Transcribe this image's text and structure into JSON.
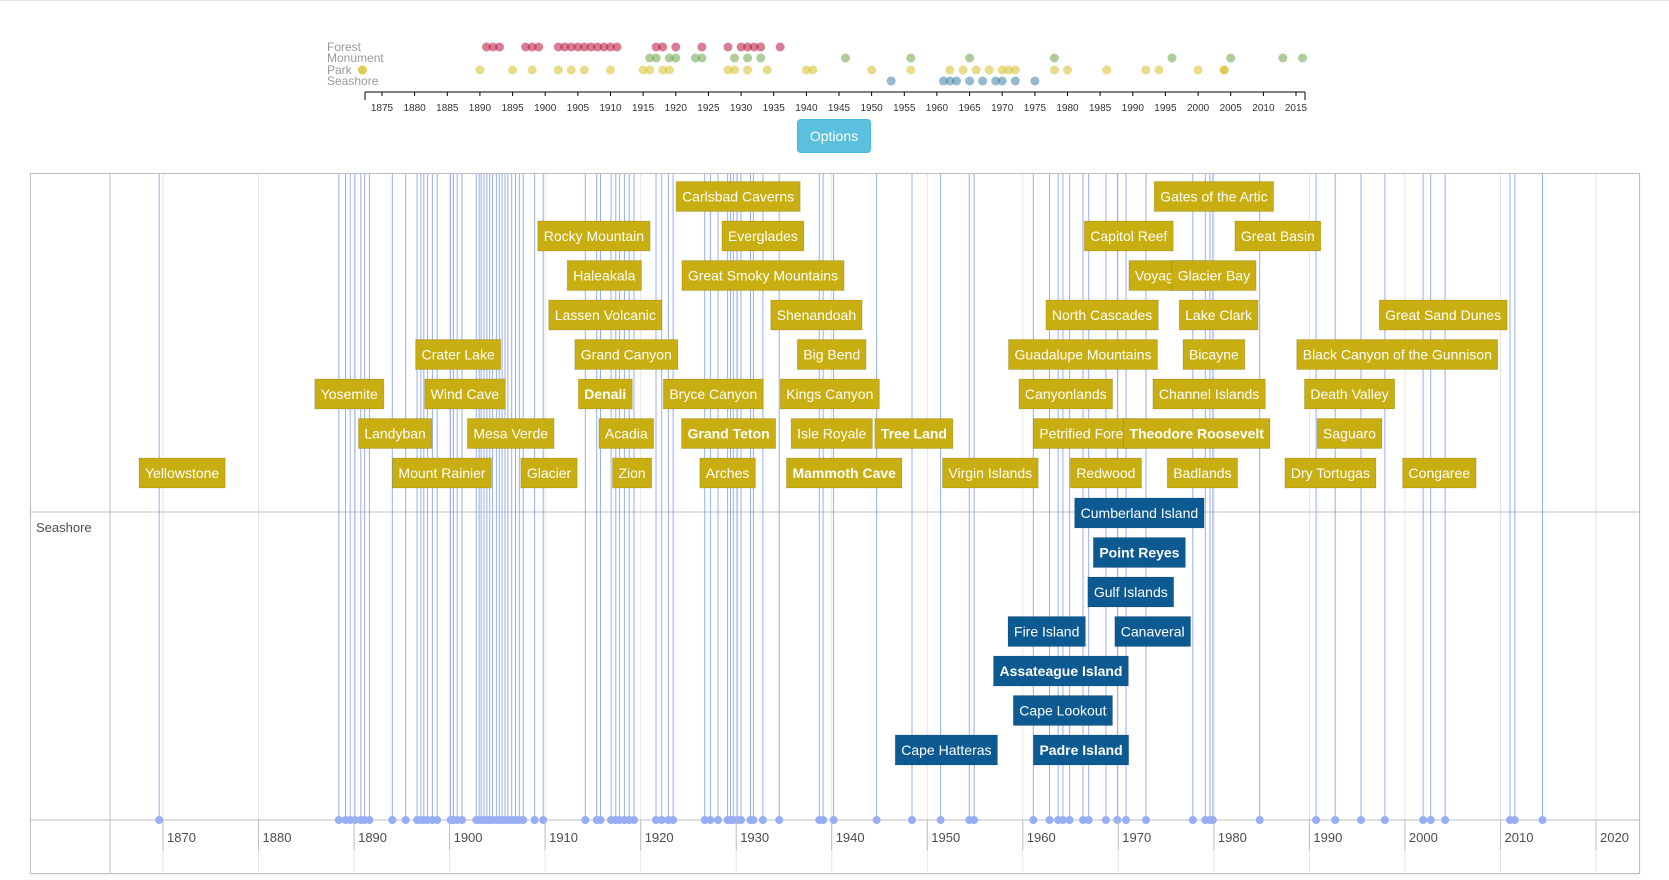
{
  "options_button": {
    "label": "Options"
  },
  "colors": {
    "park_box": "#c8ae10",
    "seashore_box": "#0d5a93",
    "line": "#97aef5",
    "forest_dot": "#b8133a",
    "monument_dot": "#6da44a",
    "park_dot": "#d6bf2c",
    "seashore_dot": "#3e7fa8"
  },
  "overview": {
    "categories": [
      "Forest",
      "Monument",
      "Park",
      "Seashore"
    ],
    "x_ticks": [
      1875,
      1880,
      1885,
      1890,
      1895,
      1900,
      1905,
      1910,
      1915,
      1920,
      1925,
      1930,
      1935,
      1940,
      1945,
      1950,
      1955,
      1960,
      1965,
      1970,
      1975,
      1980,
      1985,
      1990,
      1995,
      2000,
      2005,
      2010,
      2015
    ],
    "x_range": [
      1872,
      2016
    ],
    "points": {
      "Forest": [
        1891,
        1892,
        1893,
        1897,
        1898,
        1899,
        1902,
        1903,
        1904,
        1905,
        1906,
        1907,
        1908,
        1909,
        1910,
        1911,
        1917,
        1918,
        1920,
        1924,
        1928,
        1930,
        1931,
        1932,
        1933,
        1936
      ],
      "Monument": [
        1916,
        1917,
        1919,
        1920,
        1923,
        1924,
        1929,
        1931,
        1933,
        1946,
        1956,
        1965,
        1978,
        1996,
        2005,
        2013,
        2016
      ],
      "Park": [
        1872,
        1872,
        1890,
        1895,
        1898,
        1902,
        1904,
        1906,
        1910,
        1915,
        1916,
        1918,
        1919,
        1928,
        1929,
        1931,
        1934,
        1940,
        1941,
        1950,
        1956,
        1962,
        1964,
        1966,
        1968,
        1970,
        1971,
        1972,
        1978,
        1980,
        1986,
        1992,
        1994,
        2000,
        2004,
        2004
      ],
      "Seashore": [
        1953,
        1961,
        1962,
        1963,
        1965,
        1967,
        1969,
        1970,
        1972,
        1975
      ]
    }
  },
  "timeline": {
    "x_ticks": [
      1870,
      1880,
      1890,
      1900,
      1910,
      1920,
      1930,
      1940,
      1950,
      1960,
      1970,
      1980,
      1990,
      2000,
      2010,
      2020
    ],
    "x_range": [
      1866.55,
      2023.05
    ],
    "group_label": "Seashore",
    "park_items": [
      {
        "label": "Yellowstone",
        "year": 1872.0,
        "row": 0,
        "bold": false
      },
      {
        "label": "Mount Rainier",
        "year": 1899.2,
        "row": 0,
        "bold": false
      },
      {
        "label": "Glacier",
        "year": 1910.4,
        "row": 0,
        "bold": false
      },
      {
        "label": "Zion",
        "year": 1919.1,
        "row": 0,
        "bold": false
      },
      {
        "label": "Arches",
        "year": 1929.1,
        "row": 0,
        "bold": false
      },
      {
        "label": "Mammoth Cave",
        "year": 1941.3,
        "row": 0,
        "bold": true
      },
      {
        "label": "Virgin Islands",
        "year": 1956.6,
        "row": 0,
        "bold": false
      },
      {
        "label": "Redwood",
        "year": 1968.7,
        "row": 0,
        "bold": false
      },
      {
        "label": "Badlands",
        "year": 1978.8,
        "row": 0,
        "bold": false
      },
      {
        "label": "Dry Tortugas",
        "year": 1992.2,
        "row": 0,
        "bold": false
      },
      {
        "label": "Congaree",
        "year": 2003.6,
        "row": 0,
        "bold": false
      },
      {
        "label": "Landyban",
        "year": 1894.3,
        "row": 1,
        "bold": false
      },
      {
        "label": "Mesa Verde",
        "year": 1906.4,
        "row": 1,
        "bold": false
      },
      {
        "label": "Acadia",
        "year": 1918.5,
        "row": 1,
        "bold": false
      },
      {
        "label": "Grand Teton",
        "year": 1929.2,
        "row": 1,
        "bold": true
      },
      {
        "label": "Isle Royale",
        "year": 1940.0,
        "row": 1,
        "bold": false
      },
      {
        "label": "Tree Land",
        "year": 1948.6,
        "row": 1,
        "bold": true
      },
      {
        "label": "Petrified Forest",
        "year": 1966.7,
        "row": 1,
        "bold": false
      },
      {
        "label": "Theodore Roosevelt",
        "year": 1978.2,
        "row": 1,
        "bold": true
      },
      {
        "label": "Saguaro",
        "year": 1994.2,
        "row": 1,
        "bold": false
      },
      {
        "label": "Yosemite",
        "year": 1889.5,
        "row": 2,
        "bold": false
      },
      {
        "label": "Wind Cave",
        "year": 1901.6,
        "row": 2,
        "bold": false
      },
      {
        "label": "Denali",
        "year": 1916.3,
        "row": 2,
        "bold": true
      },
      {
        "label": "Bryce Canyon",
        "year": 1927.6,
        "row": 2,
        "bold": false
      },
      {
        "label": "Kings Canyon",
        "year": 1939.8,
        "row": 2,
        "bold": false
      },
      {
        "label": "Canyonlands",
        "year": 1964.5,
        "row": 2,
        "bold": false
      },
      {
        "label": "Channel Islands",
        "year": 1979.5,
        "row": 2,
        "bold": false
      },
      {
        "label": "Death Valley",
        "year": 1994.2,
        "row": 2,
        "bold": false
      },
      {
        "label": "Crater Lake",
        "year": 1900.9,
        "row": 3,
        "bold": false
      },
      {
        "label": "Grand Canyon",
        "year": 1918.5,
        "row": 3,
        "bold": false
      },
      {
        "label": "Big Bend",
        "year": 1940.0,
        "row": 3,
        "bold": false
      },
      {
        "label": "Guadalupe Mountains",
        "year": 1966.3,
        "row": 3,
        "bold": false
      },
      {
        "label": "Bicayne",
        "year": 1980.0,
        "row": 3,
        "bold": false
      },
      {
        "label": "Black Canyon of the Gunnison",
        "year": 1999.2,
        "row": 3,
        "bold": false
      },
      {
        "label": "Lassen Volcanic",
        "year": 1916.3,
        "row": 4,
        "bold": false
      },
      {
        "label": "Shenandoah",
        "year": 1938.4,
        "row": 4,
        "bold": false
      },
      {
        "label": "North Cascades",
        "year": 1968.3,
        "row": 4,
        "bold": false
      },
      {
        "label": "Lake Clark",
        "year": 1980.5,
        "row": 4,
        "bold": false
      },
      {
        "label": "Great Sand Dunes",
        "year": 2004.0,
        "row": 4,
        "bold": false
      },
      {
        "label": "Haleakala",
        "year": 1916.2,
        "row": 5,
        "bold": false
      },
      {
        "label": "Great Smoky Mountains",
        "year": 1932.8,
        "row": 5,
        "bold": false
      },
      {
        "label": "Voyaguers",
        "year": 1975.2,
        "row": 5,
        "bold": false
      },
      {
        "label": "Glacier Bay",
        "year": 1980.0,
        "row": 5,
        "bold": false
      },
      {
        "label": "Rocky Mountain",
        "year": 1915.1,
        "row": 6,
        "bold": false
      },
      {
        "label": "Everglades",
        "year": 1932.8,
        "row": 6,
        "bold": false
      },
      {
        "label": "Capitol Reef",
        "year": 1971.1,
        "row": 6,
        "bold": false
      },
      {
        "label": "Great Basin",
        "year": 1986.7,
        "row": 6,
        "bold": false
      },
      {
        "label": "Carlsbad Caverns",
        "year": 1930.2,
        "row": 7,
        "bold": false
      },
      {
        "label": "Gates of the Artic",
        "year": 1980.0,
        "row": 7,
        "bold": false
      }
    ],
    "seashore_items": [
      {
        "label": "Cape Hatteras",
        "year": 1952.0,
        "row": 0,
        "bold": false
      },
      {
        "label": "Padre Island",
        "year": 1966.1,
        "row": 0,
        "bold": true
      },
      {
        "label": "Cape Lookout",
        "year": 1964.2,
        "row": 1,
        "bold": false
      },
      {
        "label": "Assateague Island",
        "year": 1964.0,
        "row": 2,
        "bold": true
      },
      {
        "label": "Fire Island",
        "year": 1962.5,
        "row": 3,
        "bold": false
      },
      {
        "label": "Canaveral",
        "year": 1973.6,
        "row": 3,
        "bold": false
      },
      {
        "label": "Gulf Islands",
        "year": 1971.3,
        "row": 4,
        "bold": false
      },
      {
        "label": "Point Reyes",
        "year": 1972.2,
        "row": 5,
        "bold": true
      },
      {
        "label": "Cumberland Island",
        "year": 1972.2,
        "row": 6,
        "bold": false
      }
    ],
    "line_years": [
      1869.6,
      1888.4,
      1889.1,
      1889.6,
      1890.1,
      1890.7,
      1891.1,
      1891.6,
      1894.0,
      1895.4,
      1896.6,
      1897.0,
      1897.3,
      1897.7,
      1898.2,
      1898.7,
      1900.1,
      1900.4,
      1900.8,
      1901.3,
      1902.8,
      1903.1,
      1903.3,
      1903.6,
      1903.9,
      1904.2,
      1904.5,
      1904.9,
      1905.2,
      1905.5,
      1905.8,
      1906.1,
      1906.5,
      1906.9,
      1907.3,
      1907.7,
      1908.9,
      1909.8,
      1914.2,
      1915.4,
      1915.8,
      1916.9,
      1917.4,
      1917.8,
      1918.3,
      1918.8,
      1919.3,
      1921.6,
      1922.2,
      1922.9,
      1923.4,
      1926.7,
      1927.3,
      1928.1,
      1929.1,
      1929.4,
      1929.7,
      1930.1,
      1930.5,
      1931.5,
      1931.8,
      1932.8,
      1934.5,
      1938.7,
      1939.1,
      1940.2,
      1944.7,
      1948.4,
      1951.4,
      1954.4,
      1954.9,
      1961.1,
      1962.8,
      1963.7,
      1964.2,
      1964.9,
      1966.3,
      1966.9,
      1968.7,
      1969.9,
      1970.8,
      1972.9,
      1977.8,
      1979.1,
      1979.6,
      1979.9,
      1984.8,
      1990.7,
      1992.7,
      1995.4,
      1997.9,
      2001.9,
      2002.7,
      2004.2,
      2011.0,
      2011.5,
      2014.4
    ]
  }
}
